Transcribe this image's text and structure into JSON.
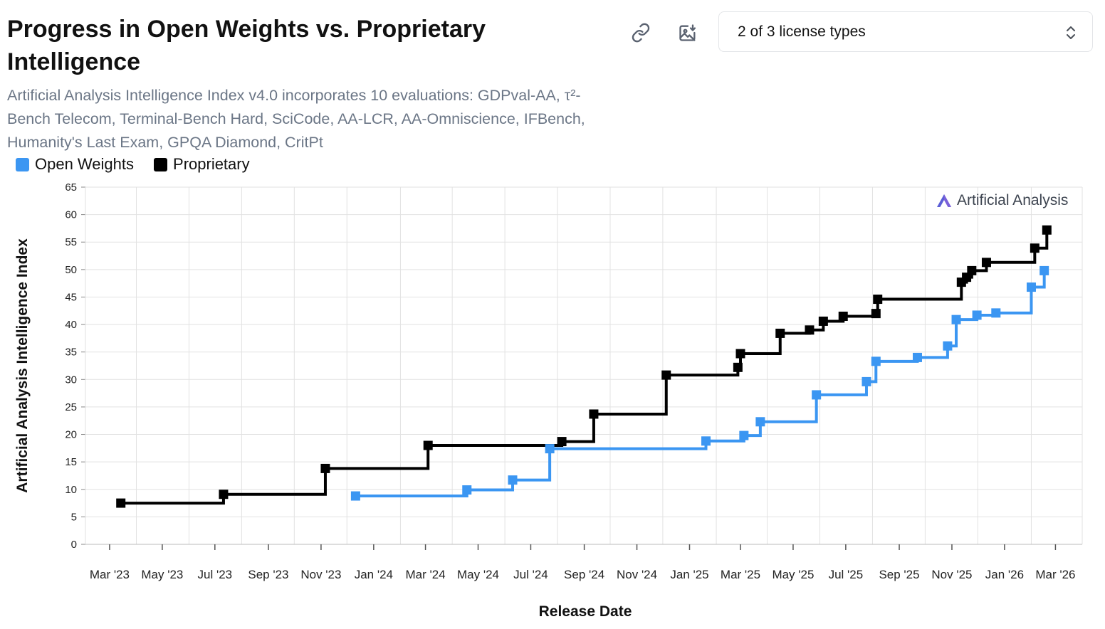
{
  "header": {
    "title": "Progress in Open Weights vs. Proprietary Intelligence",
    "subtitle": "Artificial Analysis Intelligence Index v4.0 incorporates 10 evaluations: GDPval-AA, τ²-Bench Telecom, Terminal-Bench Hard, SciCode, AA-LCR, AA-Omniscience, IFBench, Humanity's Last Exam, GPQA Diamond, CritPt"
  },
  "toolbar": {
    "link_icon": "link-icon",
    "image_icon": "image-download-icon",
    "select_value": "2 of 3 license types",
    "select_icon": "chevron-up-down-icon"
  },
  "legend": [
    {
      "label": "Open Weights",
      "color": "#3b96f2"
    },
    {
      "label": "Proprietary",
      "color": "#000000"
    }
  ],
  "watermark": {
    "text": "Artificial Analysis",
    "icon": "artificial-analysis-logo-icon"
  },
  "colors": {
    "open": "#3b96f2",
    "proprietary": "#000000",
    "grid": "#e2e2e2",
    "axis_text": "#222222"
  },
  "chart_data": {
    "type": "line",
    "step": true,
    "title": "Progress in Open Weights vs. Proprietary Intelligence",
    "xlabel": "Release Date",
    "ylabel": "Artificial Analysis Intelligence Index",
    "ylim": [
      0,
      65
    ],
    "yticks": [
      0,
      5,
      10,
      15,
      20,
      25,
      30,
      35,
      40,
      45,
      50,
      55,
      60,
      65
    ],
    "xlim": [
      "2023-02-01",
      "2026-04-01"
    ],
    "xticks": [
      {
        "date": "2023-03-01",
        "label": "Mar '23"
      },
      {
        "date": "2023-05-01",
        "label": "May '23"
      },
      {
        "date": "2023-07-01",
        "label": "Jul '23"
      },
      {
        "date": "2023-09-01",
        "label": "Sep '23"
      },
      {
        "date": "2023-11-01",
        "label": "Nov '23"
      },
      {
        "date": "2024-01-01",
        "label": "Jan '24"
      },
      {
        "date": "2024-03-01",
        "label": "Mar '24"
      },
      {
        "date": "2024-05-01",
        "label": "May '24"
      },
      {
        "date": "2024-07-01",
        "label": "Jul '24"
      },
      {
        "date": "2024-09-01",
        "label": "Sep '24"
      },
      {
        "date": "2024-11-01",
        "label": "Nov '24"
      },
      {
        "date": "2025-01-01",
        "label": "Jan '25"
      },
      {
        "date": "2025-03-01",
        "label": "Mar '25"
      },
      {
        "date": "2025-05-01",
        "label": "May '25"
      },
      {
        "date": "2025-07-01",
        "label": "Jul '25"
      },
      {
        "date": "2025-09-01",
        "label": "Sep '25"
      },
      {
        "date": "2025-11-01",
        "label": "Nov '25"
      },
      {
        "date": "2026-01-01",
        "label": "Jan '26"
      },
      {
        "date": "2026-03-01",
        "label": "Mar '26"
      }
    ],
    "series": [
      {
        "name": "Proprietary",
        "color": "#000000",
        "points": [
          {
            "x": "2023-03-14",
            "y": 7.5
          },
          {
            "x": "2023-07-11",
            "y": 9.1
          },
          {
            "x": "2023-11-06",
            "y": 13.8
          },
          {
            "x": "2024-03-04",
            "y": 18.0
          },
          {
            "x": "2024-08-06",
            "y": 18.7
          },
          {
            "x": "2024-09-12",
            "y": 23.7
          },
          {
            "x": "2024-12-05",
            "y": 30.8
          },
          {
            "x": "2025-02-26",
            "y": 32.2
          },
          {
            "x": "2025-03-01",
            "y": 34.7
          },
          {
            "x": "2025-04-16",
            "y": 38.4
          },
          {
            "x": "2025-05-20",
            "y": 39.0
          },
          {
            "x": "2025-06-05",
            "y": 40.6
          },
          {
            "x": "2025-06-28",
            "y": 41.5
          },
          {
            "x": "2025-08-05",
            "y": 42.0
          },
          {
            "x": "2025-08-07",
            "y": 44.6
          },
          {
            "x": "2025-11-12",
            "y": 47.7
          },
          {
            "x": "2025-11-18",
            "y": 48.6
          },
          {
            "x": "2025-11-24",
            "y": 49.8
          },
          {
            "x": "2025-12-11",
            "y": 51.3
          },
          {
            "x": "2026-02-05",
            "y": 53.9
          },
          {
            "x": "2026-02-19",
            "y": 57.2
          }
        ]
      },
      {
        "name": "Open Weights",
        "color": "#3b96f2",
        "points": [
          {
            "x": "2023-12-11",
            "y": 8.8
          },
          {
            "x": "2024-04-18",
            "y": 9.9
          },
          {
            "x": "2024-06-10",
            "y": 11.7
          },
          {
            "x": "2024-07-23",
            "y": 17.4
          },
          {
            "x": "2025-01-20",
            "y": 18.8
          },
          {
            "x": "2025-03-05",
            "y": 19.8
          },
          {
            "x": "2025-03-24",
            "y": 22.3
          },
          {
            "x": "2025-05-28",
            "y": 27.2
          },
          {
            "x": "2025-07-25",
            "y": 29.6
          },
          {
            "x": "2025-08-05",
            "y": 33.3
          },
          {
            "x": "2025-09-22",
            "y": 34.0
          },
          {
            "x": "2025-10-27",
            "y": 36.1
          },
          {
            "x": "2025-11-06",
            "y": 40.9
          },
          {
            "x": "2025-11-30",
            "y": 41.7
          },
          {
            "x": "2025-12-22",
            "y": 42.1
          },
          {
            "x": "2026-02-01",
            "y": 46.8
          },
          {
            "x": "2026-02-16",
            "y": 49.8
          }
        ]
      }
    ]
  }
}
